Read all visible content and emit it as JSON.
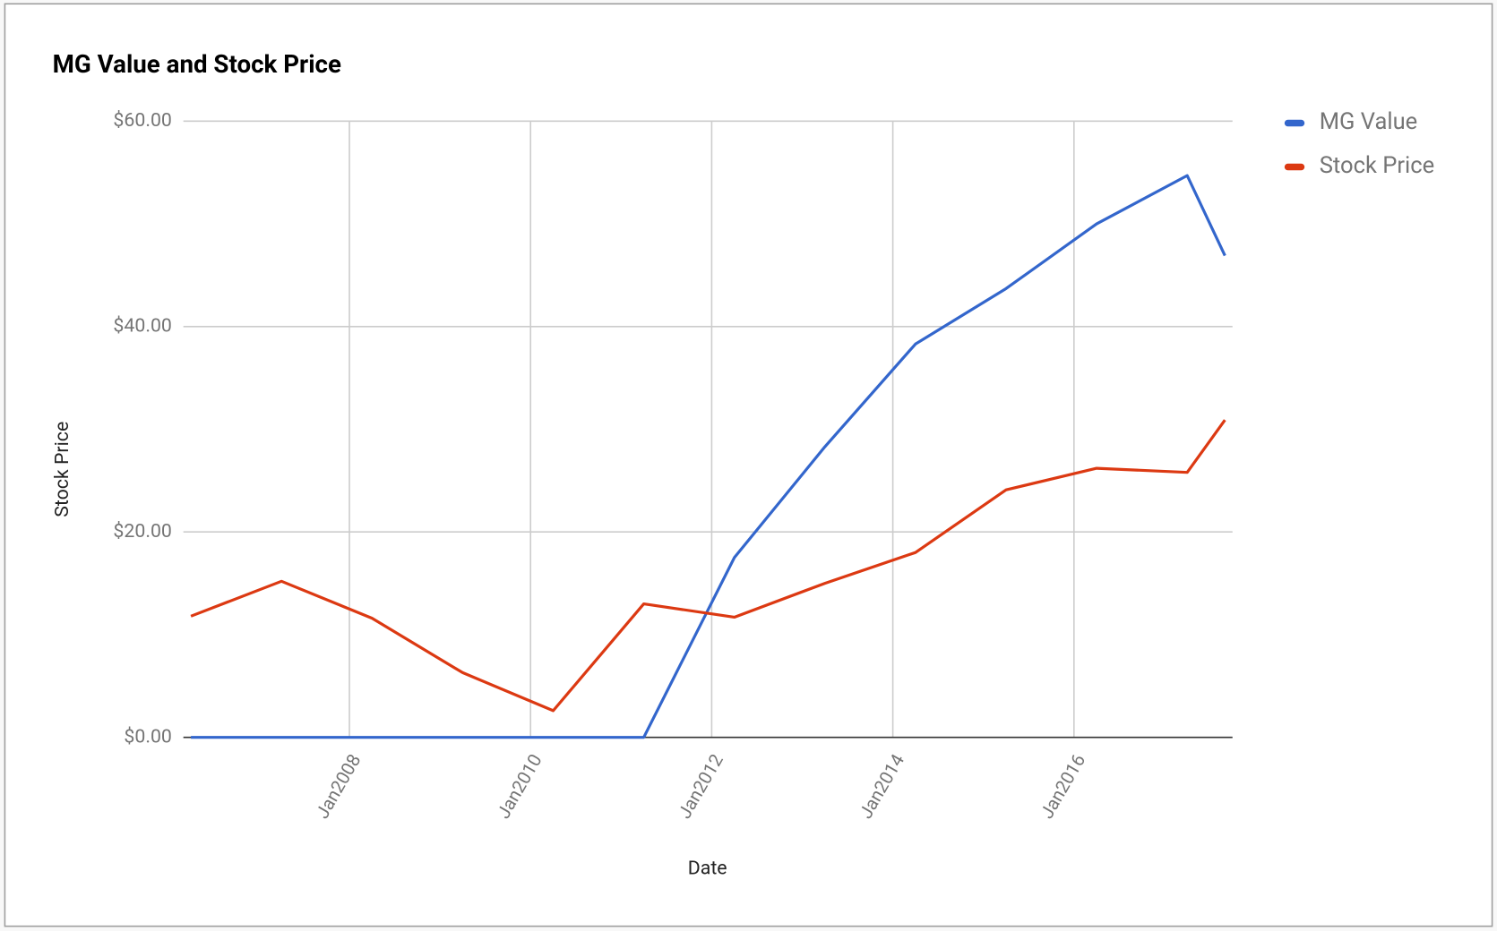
{
  "chart_data": {
    "type": "line",
    "title": "MG Value and Stock Price",
    "x_label": "Date",
    "y_label": "Stock Price",
    "x": [
      "2006-04",
      "2007-04",
      "2008-04",
      "2009-04",
      "2010-04",
      "2011-04",
      "2012-04",
      "2013-04",
      "2014-04",
      "2015-04",
      "2016-04",
      "2017-04",
      "2017-09"
    ],
    "series": [
      {
        "name": "MG Value",
        "color": "#3366cc",
        "values": [
          0,
          0,
          0,
          0,
          0,
          0,
          17.5,
          28.3,
          38.3,
          43.7,
          50.0,
          54.7,
          46.9
        ]
      },
      {
        "name": "Stock Price",
        "color": "#dc3912",
        "values": [
          11.8,
          15.2,
          11.6,
          6.3,
          2.6,
          13.0,
          11.7,
          15.0,
          18.0,
          24.1,
          26.2,
          25.8,
          30.9
        ]
      }
    ],
    "xlim": [
      "2006-03",
      "2017-10"
    ],
    "xticks": [
      {
        "value": "2008-01",
        "label": "Jan2008"
      },
      {
        "value": "2010-01",
        "label": "Jan2010"
      },
      {
        "value": "2012-01",
        "label": "Jan2012"
      },
      {
        "value": "2014-01",
        "label": "Jan2014"
      },
      {
        "value": "2016-01",
        "label": "Jan2016"
      }
    ],
    "ylim": [
      0,
      60
    ],
    "yticks": [
      {
        "value": 0,
        "label": "$0.00"
      },
      {
        "value": 20,
        "label": "$20.00"
      },
      {
        "value": 40,
        "label": "$40.00"
      },
      {
        "value": 60,
        "label": "$60.00"
      }
    ],
    "grid": true,
    "legend": "right"
  }
}
